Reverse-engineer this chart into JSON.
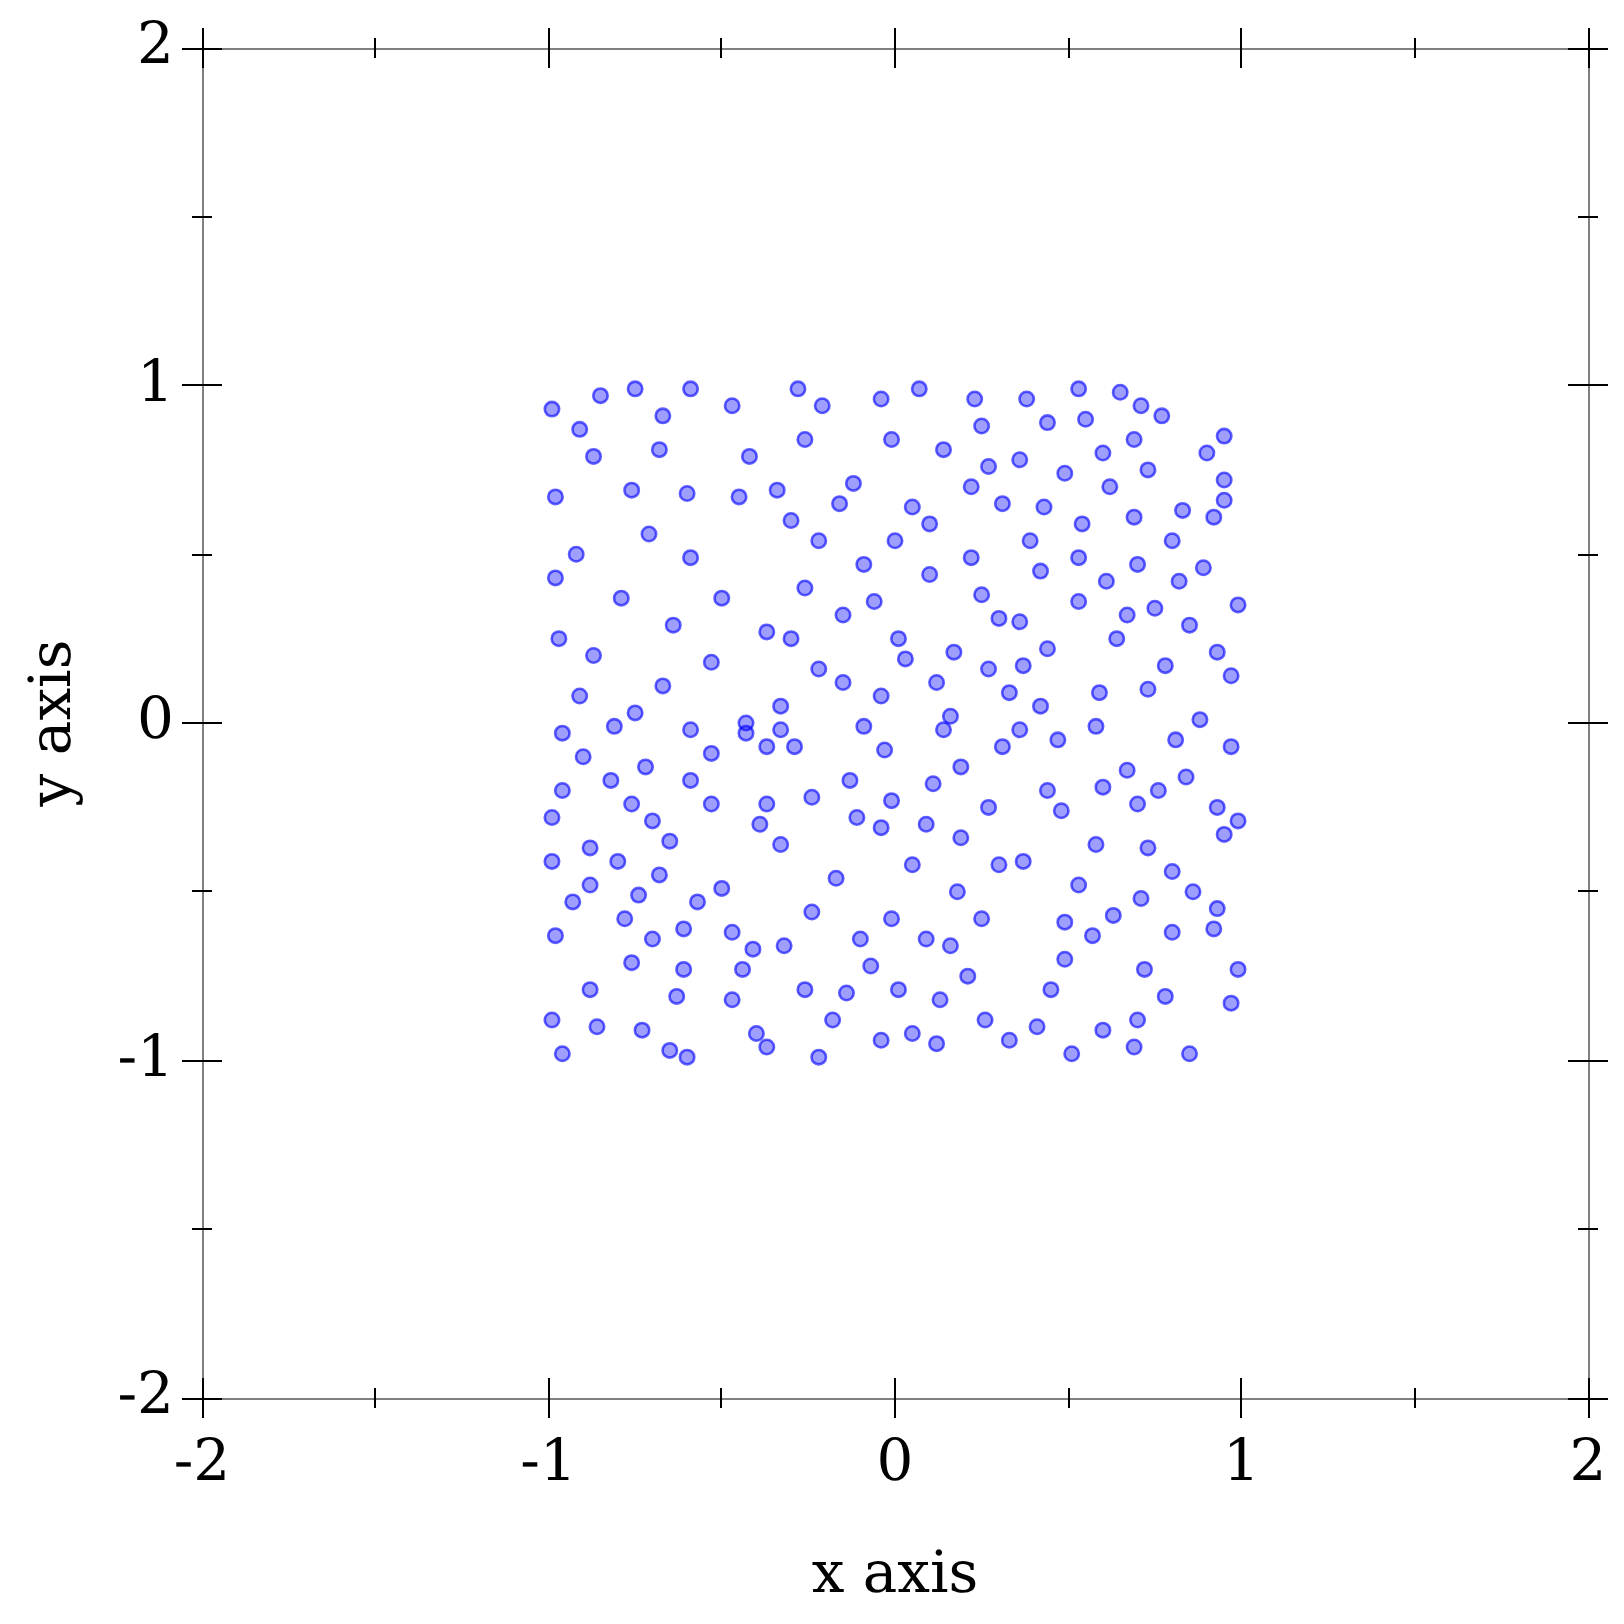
{
  "chart_data": {
    "type": "scatter",
    "xlabel": "x axis",
    "ylabel": "y axis",
    "color": "#0000ff",
    "marker": "circle",
    "xlim": [
      -2,
      2
    ],
    "ylim": [
      -2,
      2
    ],
    "xticks": [
      -2,
      {
        "value": -1.5,
        "label": null
      },
      -1,
      {
        "value": -0.5,
        "label": null
      },
      0,
      {
        "value": 0.5,
        "label": null
      },
      1,
      {
        "value": 1.5,
        "label": null
      },
      2
    ],
    "yticks": [
      -2,
      {
        "value": -1.5,
        "label": null
      },
      -1,
      {
        "value": -0.5,
        "label": null
      },
      0,
      {
        "value": 0.5,
        "label": null
      },
      1,
      {
        "value": 1.5,
        "label": null
      },
      2
    ],
    "x": [
      -0.75,
      -0.99,
      -0.85,
      -0.59,
      -0.47,
      -0.91,
      -0.67,
      -0.87,
      -0.68,
      -0.42,
      -0.98,
      -0.76,
      -0.6,
      -0.45,
      -0.71,
      -0.92,
      -0.59,
      -0.98,
      -0.79,
      -0.5,
      -0.64,
      -0.97,
      -0.37,
      -0.87,
      -0.53,
      -0.67,
      -0.91,
      -0.75,
      -0.43,
      -0.28,
      -0.04,
      0.07,
      0.23,
      -0.21,
      0.25,
      -0.26,
      -0.01,
      0.14,
      0.27,
      -0.12,
      0.22,
      -0.34,
      0.05,
      -0.16,
      0.31,
      -0.3,
      0.1,
      -0.22,
      0,
      0.22,
      -0.09,
      -0.26,
      0.1,
      0.25,
      -0.06,
      -0.15,
      0.3,
      0.01,
      -0.3,
      0.17,
      -0.22,
      0.03,
      0.27,
      -0.15,
      0.12,
      -0.33,
      -0.04,
      0.16,
      0.33,
      0.53,
      0.65,
      0.38,
      0.71,
      0.44,
      0.55,
      0.77,
      0.69,
      0.95,
      0.36,
      0.6,
      0.9,
      0.49,
      0.73,
      0.95,
      0.62,
      0.43,
      0.83,
      0.95,
      0.54,
      0.69,
      0.92,
      0.39,
      0.8,
      0.53,
      0.7,
      0.89,
      0.42,
      0.61,
      0.82,
      0.99,
      0.53,
      0.75,
      0.36,
      0.67,
      0.85,
      0.44,
      0.64,
      0.93,
      0.37,
      0.78,
      0.59,
      0.97,
      0.42,
      0.88,
      0.73,
      -0.96,
      -0.81,
      -0.59,
      -0.43,
      -0.9,
      -0.72,
      -0.53,
      -0.37,
      -0.82,
      -0.59,
      -0.96,
      -0.76,
      -0.53,
      -0.37,
      -0.99,
      -0.7,
      -0.39,
      -0.88,
      -0.65,
      -0.99,
      -0.8,
      -0.68,
      -0.5,
      -0.88,
      -0.93,
      -0.74,
      -0.57,
      -0.78,
      -0.61,
      -0.47,
      -0.98,
      -0.7,
      -0.41,
      -0.76,
      -0.61,
      -0.44,
      -0.88,
      -0.63,
      -0.47,
      -0.99,
      -0.86,
      -0.73,
      -0.4,
      -0.96,
      -0.65,
      -0.6,
      -0.37,
      -0.33,
      -0.09,
      0.14,
      0.31,
      -0.29,
      -0.03,
      -0.13,
      0.19,
      -0.24,
      -0.01,
      0.11,
      0.27,
      -0.11,
      0.09,
      -0.33,
      -0.04,
      0.19,
      -0.17,
      0.05,
      0.3,
      0.18,
      -0.24,
      -0.01,
      0.25,
      -0.1,
      0.09,
      -0.32,
      -0.07,
      0.16,
      -0.26,
      0.01,
      0.21,
      0.13,
      -0.14,
      -0.18,
      0.05,
      0.26,
      -0.22,
      -0.04,
      0.12,
      0.33,
      0.36,
      0.58,
      0.81,
      0.47,
      0.97,
      0.67,
      0.84,
      0.44,
      0.6,
      0.76,
      0.93,
      0.99,
      0.48,
      0.7,
      0.95,
      0.58,
      0.73,
      0.37,
      0.8,
      0.53,
      0.86,
      0.71,
      0.93,
      0.63,
      0.49,
      0.92,
      0.57,
      0.8,
      0.49,
      0.72,
      0.99,
      0.45,
      0.78,
      0.97,
      0.6,
      0.41,
      0.7,
      0.51,
      0.85,
      0.69
    ],
    "values": [
      0.99,
      0.93,
      0.97,
      0.99,
      0.94,
      0.87,
      0.91,
      0.79,
      0.81,
      0.79,
      0.67,
      0.69,
      0.68,
      0.67,
      0.56,
      0.5,
      0.49,
      0.43,
      0.37,
      0.37,
      0.29,
      0.25,
      0.27,
      0.2,
      0.18,
      0.11,
      0.08,
      0.03,
      0,
      0.99,
      0.96,
      0.99,
      0.96,
      0.94,
      0.88,
      0.84,
      0.84,
      0.81,
      0.76,
      0.71,
      0.7,
      0.69,
      0.64,
      0.65,
      0.65,
      0.6,
      0.59,
      0.54,
      0.54,
      0.49,
      0.47,
      0.4,
      0.44,
      0.38,
      0.36,
      0.32,
      0.31,
      0.25,
      0.25,
      0.21,
      0.16,
      0.19,
      0.16,
      0.12,
      0.12,
      0.05,
      0.08,
      0.02,
      0.09,
      0.99,
      0.98,
      0.96,
      0.94,
      0.89,
      0.9,
      0.91,
      0.84,
      0.85,
      0.78,
      0.8,
      0.8,
      0.74,
      0.75,
      0.72,
      0.7,
      0.64,
      0.63,
      0.66,
      0.59,
      0.61,
      0.61,
      0.54,
      0.54,
      0.49,
      0.47,
      0.46,
      0.45,
      0.42,
      0.42,
      0.35,
      0.36,
      0.34,
      0.3,
      0.32,
      0.29,
      0.22,
      0.25,
      0.21,
      0.17,
      0.17,
      0.09,
      0.14,
      0.05,
      0.01,
      0.1,
      -0.03,
      -0.01,
      -0.02,
      -0.03,
      -0.1,
      -0.13,
      -0.09,
      -0.07,
      -0.17,
      -0.17,
      -0.2,
      -0.24,
      -0.24,
      -0.24,
      -0.28,
      -0.29,
      -0.3,
      -0.37,
      -0.35,
      -0.41,
      -0.41,
      -0.45,
      -0.49,
      -0.48,
      -0.53,
      -0.51,
      -0.53,
      -0.58,
      -0.61,
      -0.62,
      -0.63,
      -0.64,
      -0.67,
      -0.71,
      -0.73,
      -0.73,
      -0.79,
      -0.81,
      -0.82,
      -0.88,
      -0.9,
      -0.91,
      -0.92,
      -0.98,
      -0.97,
      -0.99,
      -0.96,
      -0.02,
      -0.01,
      -0.02,
      -0.07,
      -0.07,
      -0.08,
      -0.17,
      -0.13,
      -0.22,
      -0.23,
      -0.18,
      -0.25,
      -0.28,
      -0.3,
      -0.36,
      -0.31,
      -0.34,
      -0.46,
      -0.42,
      -0.42,
      -0.5,
      -0.56,
      -0.58,
      -0.58,
      -0.64,
      -0.64,
      -0.66,
      -0.72,
      -0.66,
      -0.79,
      -0.79,
      -0.75,
      -0.82,
      -0.8,
      -0.88,
      -0.92,
      -0.88,
      -0.99,
      -0.94,
      -0.95,
      -0.94,
      -0.02,
      -0.01,
      -0.05,
      -0.05,
      -0.07,
      -0.14,
      -0.16,
      -0.2,
      -0.19,
      -0.2,
      -0.25,
      -0.29,
      -0.26,
      -0.24,
      -0.33,
      -0.36,
      -0.37,
      -0.41,
      -0.44,
      -0.48,
      -0.5,
      -0.52,
      -0.55,
      -0.57,
      -0.59,
      -0.61,
      -0.63,
      -0.62,
      -0.7,
      -0.73,
      -0.73,
      -0.79,
      -0.81,
      -0.83,
      -0.91,
      -0.9,
      -0.88,
      -0.98,
      -0.98,
      -0.96
    ]
  }
}
